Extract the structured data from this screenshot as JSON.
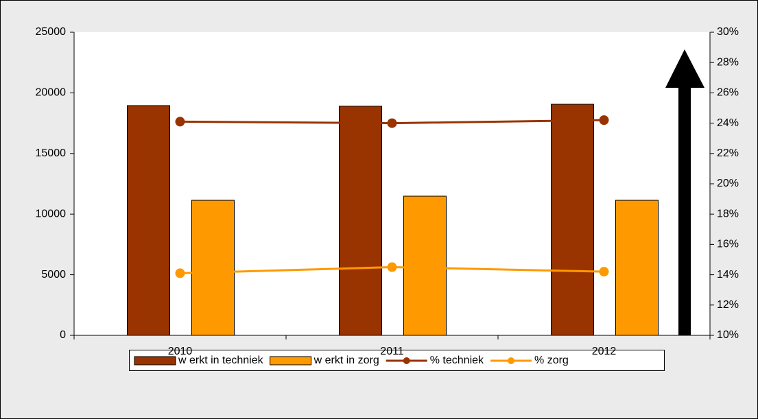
{
  "chart_data": {
    "type": "bar",
    "categories": [
      "2010",
      "2011",
      "2012"
    ],
    "series": [
      {
        "name": "w erkt in techniek",
        "type": "bar",
        "color": "#993300",
        "values": [
          18950,
          18900,
          19060
        ]
      },
      {
        "name": "w erkt in zorg",
        "type": "bar",
        "color": "#ff9900",
        "values": [
          11140,
          11480,
          11140
        ]
      },
      {
        "name": "% techniek",
        "type": "line",
        "axis": "y2",
        "color": "#993300",
        "values": [
          24.1,
          24.0,
          24.2
        ]
      },
      {
        "name": "% zorg",
        "type": "line",
        "axis": "y2",
        "color": "#ff9900",
        "values": [
          14.1,
          14.5,
          14.2
        ]
      }
    ],
    "ylim": [
      0,
      25000
    ],
    "yticks": [
      0,
      5000,
      10000,
      15000,
      20000,
      25000
    ],
    "y2lim": [
      10,
      30
    ],
    "y2ticks": [
      {
        "value": 10,
        "label": "10%"
      },
      {
        "value": 12,
        "label": "12%"
      },
      {
        "value": 14,
        "label": "14%"
      },
      {
        "value": 16,
        "label": "16%"
      },
      {
        "value": 18,
        "label": "18%"
      },
      {
        "value": 20,
        "label": "20%"
      },
      {
        "value": 22,
        "label": "22%"
      },
      {
        "value": 24,
        "label": "24%"
      },
      {
        "value": 26,
        "label": "26%"
      },
      {
        "value": 28,
        "label": "28%"
      },
      {
        "value": 30,
        "label": "30%"
      }
    ],
    "legend": "bottom"
  }
}
